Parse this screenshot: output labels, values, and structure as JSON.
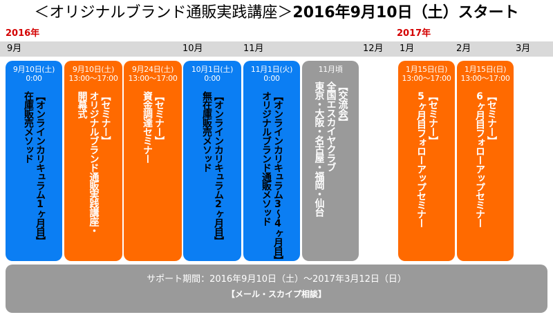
{
  "header": {
    "title_part1": "＜オリジナルブランド通販実践講座＞",
    "title_part2": "2016年9月10日（土）スタート"
  },
  "years": {
    "y2016": "2016年",
    "y2017": "2017年"
  },
  "months": {
    "sep": "9月",
    "oct": "10月",
    "nov": "11月",
    "dec": "12月",
    "jan": "1月",
    "feb": "2月",
    "mar": "3月"
  },
  "colors": {
    "blue": "#0b7ef3",
    "orange": "#ff6a00",
    "gray": "#9a9a9a",
    "year_red": "#d40000",
    "month_bar": "#d9d9d9"
  },
  "events": [
    {
      "color": "blue",
      "date1": "9月10日(土)",
      "date2": "0:00",
      "lines": [
        "【オンラインカリキュラム1ヶ月目】",
        "在庫販売メソッド"
      ]
    },
    {
      "color": "orange",
      "date1": "9月10日(土)",
      "date2": "13:00～17:00",
      "lines": [
        "【セミナー】",
        "オリジナルブランド通販実践講座・",
        "開幕式"
      ]
    },
    {
      "color": "orange",
      "date1": "9月24日(土)",
      "date2": "13:00～17:00",
      "lines": [
        "【セミナー】",
        "資金調達セミナー"
      ]
    },
    {
      "color": "blue",
      "date1": "10月1日(土)",
      "date2": "0:00",
      "lines": [
        "【オンラインカリキュラム2ヶ月目】",
        "無在庫販売メソッド"
      ]
    },
    {
      "color": "blue",
      "date1": "11月1日(火)",
      "date2": "0:00",
      "lines": [
        "【オンラインカリキュラム3～4ヶ月目】",
        "オリジナルブランド通販メソッド"
      ]
    },
    {
      "color": "gray",
      "date1": "11月頃",
      "date2": "",
      "lines": [
        "【交流会】",
        "全国エスカイヤクラブ",
        "東京・大阪・名古屋・福岡・仙台"
      ]
    },
    {
      "color": "orange",
      "date1": "1月15日(日)",
      "date2": "13:00～17:00",
      "lines": [
        "【セミナー】",
        "5ヶ月目フォローアップセミナー"
      ]
    },
    {
      "color": "orange",
      "date1": "1月15日(日)",
      "date2": "13:00～17:00",
      "lines": [
        "【セミナー】",
        "6ヶ月目フォローアップセミナー"
      ]
    }
  ],
  "support": {
    "period": "サポート期間：2016年9月10日（土）～2017年3月12日（日）",
    "note": "【メール・スカイプ相談】"
  }
}
